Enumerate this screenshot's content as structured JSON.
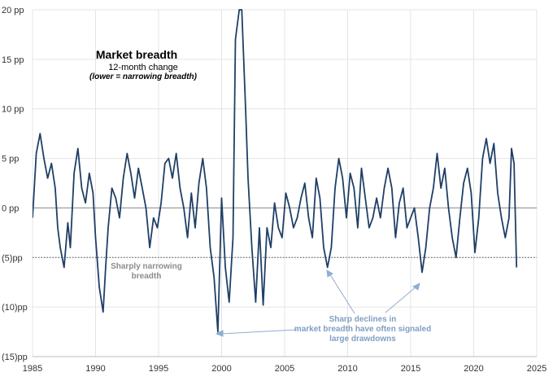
{
  "chart_data": {
    "type": "line",
    "title": "Market breadth",
    "subtitle": "12-month change",
    "note": "(lower = narrowing breadth)",
    "xlim": [
      1985,
      2025
    ],
    "ylim": [
      -15,
      20
    ],
    "x_ticks": [
      1985,
      1990,
      1995,
      2000,
      2005,
      2010,
      2015,
      2020,
      2025
    ],
    "y_ticks": [
      {
        "value": 20,
        "label": "20 pp"
      },
      {
        "value": 15,
        "label": "15 pp"
      },
      {
        "value": 10,
        "label": "10 pp"
      },
      {
        "value": 5,
        "label": "5 pp"
      },
      {
        "value": 0,
        "label": "0 pp"
      },
      {
        "value": -5,
        "label": "(5)pp"
      },
      {
        "value": -10,
        "label": "(10)pp"
      },
      {
        "value": -15,
        "label": "(15)pp"
      }
    ],
    "reference_lines": [
      {
        "value": 0,
        "style": "solid"
      },
      {
        "value": -5,
        "style": "dotted"
      }
    ],
    "annotations": {
      "threshold_label": [
        "Sharply narrowing",
        "breadth"
      ],
      "declines_label": [
        "Sharp declines in",
        "market breadth have often signaled",
        "large drawdowns"
      ]
    },
    "series": [
      {
        "name": "Market breadth 12-month change",
        "color": "#1f3f66",
        "x": [
          1985.0,
          1985.3,
          1985.6,
          1985.9,
          1986.2,
          1986.5,
          1986.8,
          1987.0,
          1987.2,
          1987.5,
          1987.8,
          1988.0,
          1988.3,
          1988.6,
          1988.9,
          1989.2,
          1989.5,
          1989.8,
          1990.0,
          1990.3,
          1990.6,
          1990.8,
          1991.0,
          1991.3,
          1991.6,
          1991.9,
          1992.2,
          1992.5,
          1992.8,
          1993.1,
          1993.4,
          1993.7,
          1994.0,
          1994.3,
          1994.6,
          1994.9,
          1995.2,
          1995.5,
          1995.8,
          1996.1,
          1996.4,
          1996.7,
          1997.0,
          1997.3,
          1997.6,
          1997.9,
          1998.2,
          1998.5,
          1998.8,
          1999.1,
          1999.4,
          1999.7,
          2000.0,
          2000.3,
          2000.6,
          2000.9,
          2001.1,
          2001.4,
          2001.6,
          2001.9,
          2002.1,
          2002.4,
          2002.7,
          2003.0,
          2003.3,
          2003.6,
          2003.9,
          2004.2,
          2004.5,
          2004.8,
          2005.1,
          2005.4,
          2005.7,
          2006.0,
          2006.3,
          2006.6,
          2006.9,
          2007.2,
          2007.5,
          2007.8,
          2008.1,
          2008.4,
          2008.7,
          2009.0,
          2009.3,
          2009.6,
          2009.9,
          2010.2,
          2010.5,
          2010.8,
          2011.1,
          2011.4,
          2011.7,
          2012.0,
          2012.3,
          2012.6,
          2012.9,
          2013.2,
          2013.5,
          2013.8,
          2014.1,
          2014.4,
          2014.7,
          2015.0,
          2015.3,
          2015.6,
          2015.9,
          2016.2,
          2016.5,
          2016.8,
          2017.1,
          2017.4,
          2017.7,
          2018.0,
          2018.3,
          2018.6,
          2018.9,
          2019.2,
          2019.5,
          2019.8,
          2020.1,
          2020.4,
          2020.7,
          2021.0,
          2021.3,
          2021.6,
          2021.9,
          2022.2,
          2022.5,
          2022.8,
          2023.0,
          2023.2,
          2023.4
        ],
        "y": [
          -1.0,
          5.5,
          7.5,
          5.0,
          3.0,
          4.5,
          2.0,
          -2.0,
          -4.0,
          -6.0,
          -1.5,
          -4.0,
          3.5,
          6.0,
          2.0,
          0.5,
          3.5,
          1.5,
          -3.0,
          -8.0,
          -10.5,
          -6.0,
          -2.0,
          2.0,
          1.0,
          -1.0,
          3.0,
          5.5,
          3.5,
          1.0,
          4.0,
          2.0,
          0.0,
          -4.0,
          -1.0,
          -2.0,
          0.5,
          4.5,
          5.0,
          3.0,
          5.5,
          2.0,
          0.0,
          -3.0,
          1.5,
          -2.0,
          2.5,
          5.0,
          2.0,
          -4.0,
          -7.0,
          -12.5,
          1.0,
          -6.0,
          -9.5,
          -3.0,
          17.0,
          20.0,
          20.0,
          10.0,
          3.0,
          -4.0,
          -9.5,
          -2.0,
          -9.8,
          -2.0,
          -4.0,
          0.5,
          -2.0,
          -3.0,
          1.5,
          0.0,
          -2.0,
          -1.0,
          1.0,
          2.5,
          -1.0,
          -3.0,
          3.0,
          1.0,
          -4.0,
          -6.0,
          -4.0,
          2.0,
          5.0,
          3.0,
          -1.0,
          3.5,
          2.0,
          -2.0,
          4.0,
          1.0,
          -2.0,
          -1.0,
          1.0,
          -1.0,
          2.0,
          4.0,
          2.0,
          -3.0,
          0.5,
          2.0,
          -2.0,
          -1.0,
          0.0,
          -3.0,
          -6.5,
          -4.0,
          0.0,
          2.0,
          5.5,
          2.0,
          4.0,
          0.0,
          -3.0,
          -5.0,
          -1.0,
          2.5,
          4.0,
          1.5,
          -4.5,
          -1.0,
          5.0,
          7.0,
          4.5,
          6.5,
          1.5,
          -1.0,
          -3.0,
          -1.0,
          6.0,
          4.5,
          -6.0
        ]
      }
    ]
  }
}
